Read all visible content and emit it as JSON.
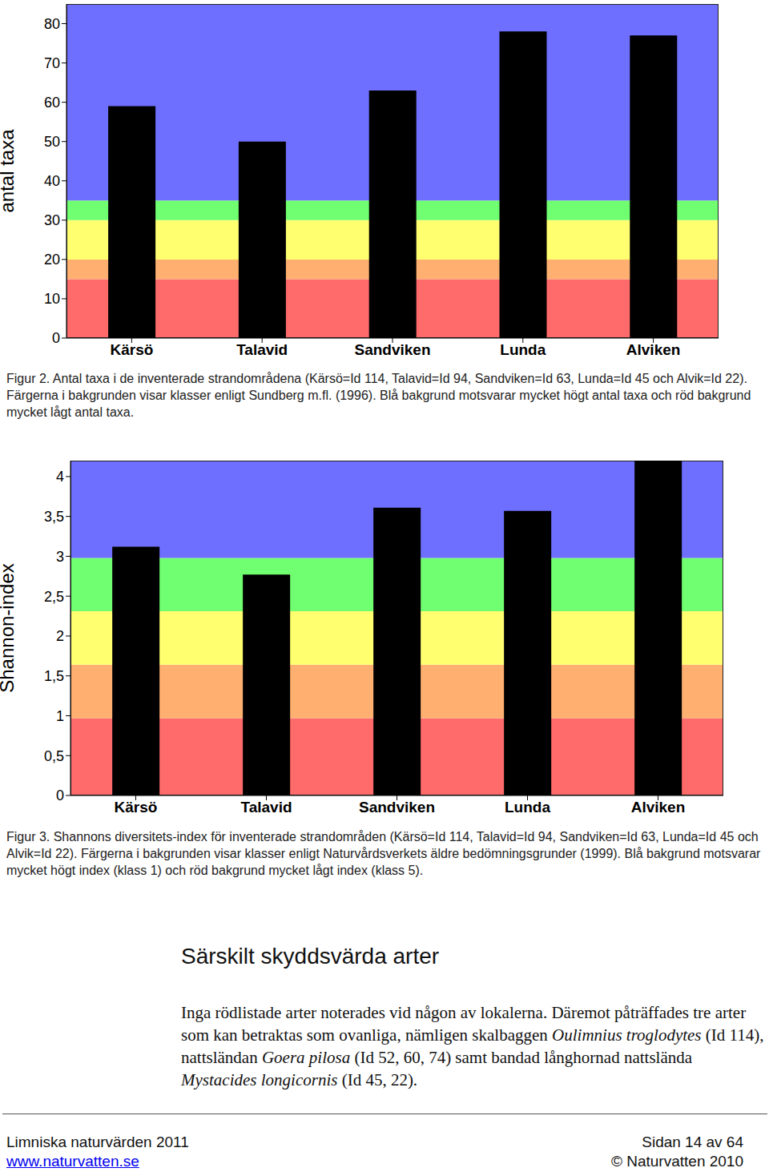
{
  "chart_data": [
    {
      "type": "bar",
      "categories": [
        "Kärsö",
        "Talavid",
        "Sandviken",
        "Lunda",
        "Alviken"
      ],
      "values": [
        59,
        50,
        63,
        78,
        77
      ],
      "color": "#000000",
      "ylim": [
        0,
        85
      ],
      "yticks": [
        0,
        10,
        20,
        30,
        40,
        50,
        60,
        70,
        80
      ],
      "y_label": "antal taxa",
      "grid": false,
      "bands": [
        {
          "from": 0,
          "to": 15,
          "color": "#ff6a6a"
        },
        {
          "from": 15,
          "to": 20,
          "color": "#ffb070"
        },
        {
          "from": 20,
          "to": 30,
          "color": "#ffff70"
        },
        {
          "from": 30,
          "to": 35,
          "color": "#70ff70"
        },
        {
          "from": 35,
          "to": 85,
          "color": "#6e6eff"
        }
      ],
      "caption": "Figur 2. Antal taxa i de inventerade strandområdena (Kärsö=Id 114, Talavid=Id 94, Sandviken=Id 63, Lunda=Id 45 och Alvik=Id 22). Färgerna i bakgrunden visar klasser enligt Sundberg m.fl. (1996). Blå bakgrund motsvarar mycket högt antal taxa och röd bakgrund mycket lågt antal taxa."
    },
    {
      "type": "bar",
      "categories": [
        "Kärsö",
        "Talavid",
        "Sandviken",
        "Lunda",
        "Alviken"
      ],
      "values": [
        3.12,
        2.77,
        3.61,
        3.57,
        4.2
      ],
      "color": "#000000",
      "ylim": [
        0,
        4.2
      ],
      "yticks": [
        0,
        {
          "value": 0.5,
          "label": "0,5"
        },
        1,
        {
          "value": 1.5,
          "label": "1,5"
        },
        2,
        {
          "value": 2.5,
          "label": "2,5"
        },
        3,
        {
          "value": 3.5,
          "label": "3,5"
        },
        4
      ],
      "y_label": "Shannon-index",
      "grid": false,
      "bands": [
        {
          "from": 0,
          "to": 0.97,
          "color": "#ff6a6a"
        },
        {
          "from": 0.97,
          "to": 1.64,
          "color": "#ffb070"
        },
        {
          "from": 1.64,
          "to": 2.31,
          "color": "#ffff70"
        },
        {
          "from": 2.31,
          "to": 2.98,
          "color": "#70ff70"
        },
        {
          "from": 2.98,
          "to": 4.2,
          "color": "#6e6eff"
        }
      ],
      "caption": "Figur 3. Shannons diversitets-index för inventerade strandområden (Kärsö=Id 114, Talavid=Id 94, Sandviken=Id 63, Lunda=Id 45 och Alvik=Id 22). Färgerna i bakgrunden visar klasser enligt Naturvårdsverkets äldre bedömningsgrunder (1999). Blå bakgrund motsvarar mycket högt index (klass 1) och röd bakgrund mycket lågt index (klass 5)."
    }
  ],
  "document": {
    "heading": "Särskilt skyddsvärda arter",
    "paragraph": [
      {
        "text": "Inga rödlistade arter noterades vid någon av lokalerna. Däremot påträffades tre arter som kan betraktas som ovanliga, nämligen skalbaggen ",
        "italic": false
      },
      {
        "text": "Oulimnius troglodytes",
        "italic": true
      },
      {
        "text": " (Id 114), nattsländan ",
        "italic": false
      },
      {
        "text": "Goera pilosa",
        "italic": true
      },
      {
        "text": " (Id 52, 60, 74) samt bandad långhornad nattslända ",
        "italic": false
      },
      {
        "text": "Mystacides longicornis",
        "italic": true
      },
      {
        "text": " (Id 45, 22).",
        "italic": false
      }
    ],
    "footer": {
      "left_top": "Limniska naturvärden 2011",
      "right_top": "Sidan 14 av 64",
      "left_bottom": "www.naturvatten.se",
      "right_bottom": "© Naturvatten 2010"
    }
  }
}
